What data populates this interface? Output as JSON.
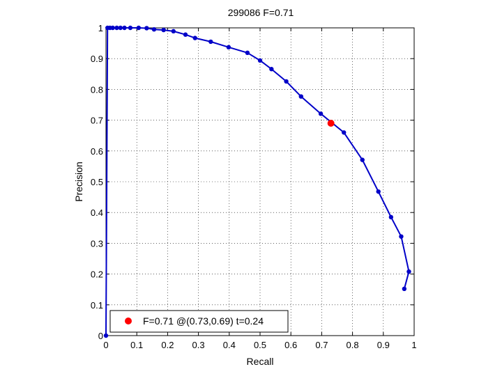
{
  "chart_data": {
    "type": "line",
    "title": "299086 F=0.71",
    "xlabel": "Recall",
    "ylabel": "Precision",
    "xlim": [
      0,
      1
    ],
    "ylim": [
      0,
      1
    ],
    "grid": true,
    "xticks": [
      0,
      0.1,
      0.2,
      0.3,
      0.4,
      0.5,
      0.6,
      0.7,
      0.8,
      0.9,
      1
    ],
    "yticks": [
      0,
      0.1,
      0.2,
      0.3,
      0.4,
      0.5,
      0.6,
      0.7,
      0.8,
      0.9,
      1
    ],
    "xtick_labels": [
      "0",
      "0.1",
      "0.2",
      "0.3",
      "0.4",
      "0.5",
      "0.6",
      "0.7",
      "0.8",
      "0.9",
      "1"
    ],
    "ytick_labels": [
      "0",
      "0.1",
      "0.2",
      "0.3",
      "0.4",
      "0.5",
      "0.6",
      "0.7",
      "0.8",
      "0.9",
      "1"
    ],
    "series": [
      {
        "color": "#0000c8",
        "marker": "dot",
        "x": [
          0.968,
          0.983,
          0.958,
          0.925,
          0.884,
          0.832,
          0.772,
          0.697,
          0.633,
          0.585,
          0.537,
          0.5,
          0.459,
          0.398,
          0.34,
          0.289,
          0.258,
          0.219,
          0.187,
          0.156,
          0.132,
          0.106,
          0.079,
          0.06,
          0.047,
          0.035,
          0.022,
          0.013,
          0.005,
          0.0
        ],
        "y": [
          0.152,
          0.208,
          0.322,
          0.385,
          0.468,
          0.571,
          0.66,
          0.721,
          0.777,
          0.826,
          0.866,
          0.894,
          0.919,
          0.937,
          0.955,
          0.967,
          0.978,
          0.989,
          0.993,
          0.995,
          0.999,
          1.0,
          1.0,
          1.0,
          1.0,
          1.0,
          1.0,
          1.0,
          1.0,
          0.0
        ]
      }
    ],
    "highlight": {
      "x": 0.73,
      "y": 0.69,
      "color": "#ff0000"
    },
    "legend": {
      "position": "bottom-left",
      "label": "F=0.71 @(0.73,0.69) t=0.24"
    }
  }
}
